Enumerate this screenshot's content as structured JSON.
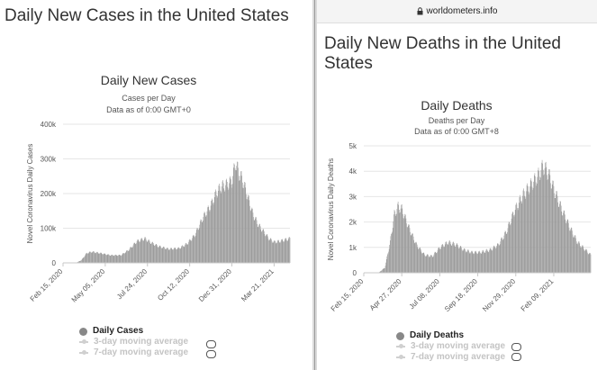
{
  "left": {
    "page_title": "Daily New Cases in the United States",
    "legend": {
      "main": "Daily Cases",
      "ma3": "3-day moving average",
      "ma7": "7-day moving average"
    }
  },
  "right": {
    "url": "worldometers.info",
    "page_title": "Daily New Deaths in the United States",
    "legend": {
      "main": "Daily Deaths",
      "ma3": "3-day moving average",
      "ma7": "7-day moving average"
    }
  },
  "colors": {
    "bars": "#9c9c9c",
    "grid": "#e6e6e6",
    "axis_text": "#555555"
  },
  "chart_data": [
    {
      "type": "bar",
      "title": "Daily New Cases",
      "subtitle": "Cases per Day",
      "subtitle2": "Data as of 0:00 GMT+0",
      "xlabel": "",
      "ylabel": "Novel Coronavirus Daily Cases",
      "ylim": [
        0,
        400000
      ],
      "yticks": [
        0,
        100000,
        200000,
        300000,
        400000
      ],
      "ytick_labels": [
        "0",
        "100k",
        "200k",
        "300k",
        "400k"
      ],
      "xtick_labels": [
        "Feb 15, 2020",
        "May 05, 2020",
        "Jul 24, 2020",
        "Oct 12, 2020",
        "Dec 31, 2020",
        "Mar 21, 2021"
      ],
      "xtick_days": [
        0,
        80,
        160,
        240,
        320,
        400
      ],
      "day_range": [
        0,
        430
      ],
      "grid": true,
      "legend_position": "bottom",
      "series": [
        {
          "name": "Daily Cases",
          "points": [
            [
              0,
              0
            ],
            [
              25,
              200
            ],
            [
              35,
              8000
            ],
            [
              45,
              28000
            ],
            [
              55,
              32000
            ],
            [
              70,
              28000
            ],
            [
              90,
              22000
            ],
            [
              110,
              22000
            ],
            [
              125,
              38000
            ],
            [
              140,
              62000
            ],
            [
              155,
              70000
            ],
            [
              165,
              60000
            ],
            [
              180,
              48000
            ],
            [
              200,
              40000
            ],
            [
              220,
              42000
            ],
            [
              235,
              55000
            ],
            [
              250,
              80000
            ],
            [
              265,
              130000
            ],
            [
              280,
              165000
            ],
            [
              290,
              200000
            ],
            [
              300,
              220000
            ],
            [
              310,
              225000
            ],
            [
              320,
              235000
            ],
            [
              327,
              290000
            ],
            [
              333,
              260000
            ],
            [
              340,
              240000
            ],
            [
              350,
              190000
            ],
            [
              360,
              140000
            ],
            [
              370,
              110000
            ],
            [
              380,
              90000
            ],
            [
              390,
              70000
            ],
            [
              400,
              60000
            ],
            [
              410,
              62000
            ],
            [
              420,
              66000
            ],
            [
              430,
              70000
            ]
          ]
        }
      ]
    },
    {
      "type": "bar",
      "title": "Daily Deaths",
      "subtitle": "Deaths per Day",
      "subtitle2": "Data as of 0:00 GMT+8",
      "xlabel": "",
      "ylabel": "Novel Coronavirus Daily Deaths",
      "ylim": [
        0,
        5000
      ],
      "yticks": [
        0,
        1000,
        2000,
        3000,
        4000,
        5000
      ],
      "ytick_labels": [
        "0",
        "1k",
        "2k",
        "3k",
        "4k",
        "5k"
      ],
      "xtick_labels": [
        "Feb 15, 2020",
        "Apr 27, 2020",
        "Jul 08, 2020",
        "Sep 18, 2020",
        "Nov 29, 2020",
        "Feb 09, 2021"
      ],
      "xtick_days": [
        0,
        72,
        144,
        216,
        288,
        360
      ],
      "day_range": [
        0,
        430
      ],
      "grid": true,
      "legend_position": "bottom",
      "series": [
        {
          "name": "Daily Deaths",
          "points": [
            [
              0,
              0
            ],
            [
              28,
              0
            ],
            [
              40,
              200
            ],
            [
              50,
              1200
            ],
            [
              58,
              2300
            ],
            [
              65,
              2600
            ],
            [
              72,
              2500
            ],
            [
              85,
              1800
            ],
            [
              100,
              1100
            ],
            [
              115,
              700
            ],
            [
              130,
              650
            ],
            [
              145,
              1000
            ],
            [
              160,
              1200
            ],
            [
              175,
              1100
            ],
            [
              190,
              900
            ],
            [
              205,
              800
            ],
            [
              220,
              800
            ],
            [
              240,
              900
            ],
            [
              255,
              1100
            ],
            [
              270,
              1600
            ],
            [
              285,
              2400
            ],
            [
              300,
              3000
            ],
            [
              315,
              3400
            ],
            [
              330,
              3800
            ],
            [
              340,
              4200
            ],
            [
              350,
              3900
            ],
            [
              360,
              3300
            ],
            [
              375,
              2500
            ],
            [
              390,
              1800
            ],
            [
              405,
              1200
            ],
            [
              420,
              900
            ],
            [
              430,
              700
            ]
          ]
        }
      ]
    }
  ]
}
